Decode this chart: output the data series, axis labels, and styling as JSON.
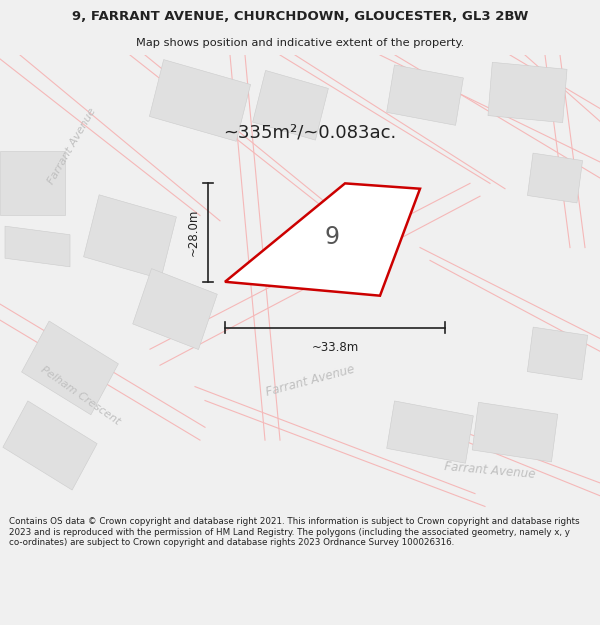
{
  "title": "9, FARRANT AVENUE, CHURCHDOWN, GLOUCESTER, GL3 2BW",
  "subtitle": "Map shows position and indicative extent of the property.",
  "area_text": "~335m²/~0.083ac.",
  "property_number": "9",
  "dim_width": "~33.8m",
  "dim_height": "~28.0m",
  "footer": "Contains OS data © Crown copyright and database right 2021. This information is subject to Crown copyright and database rights 2023 and is reproduced with the permission of HM Land Registry. The polygons (including the associated geometry, namely x, y co-ordinates) are subject to Crown copyright and database rights 2023 Ordnance Survey 100026316.",
  "bg_color": "#f0f0f0",
  "map_bg": "#ffffff",
  "plot_outline_color": "#cc0000",
  "building_color": "#e0e0e0",
  "road_line_color": "#f5b8b8",
  "street_label_color": "#c0c0c0",
  "dim_line_color": "#222222",
  "title_color": "#222222",
  "footer_color": "#222222"
}
